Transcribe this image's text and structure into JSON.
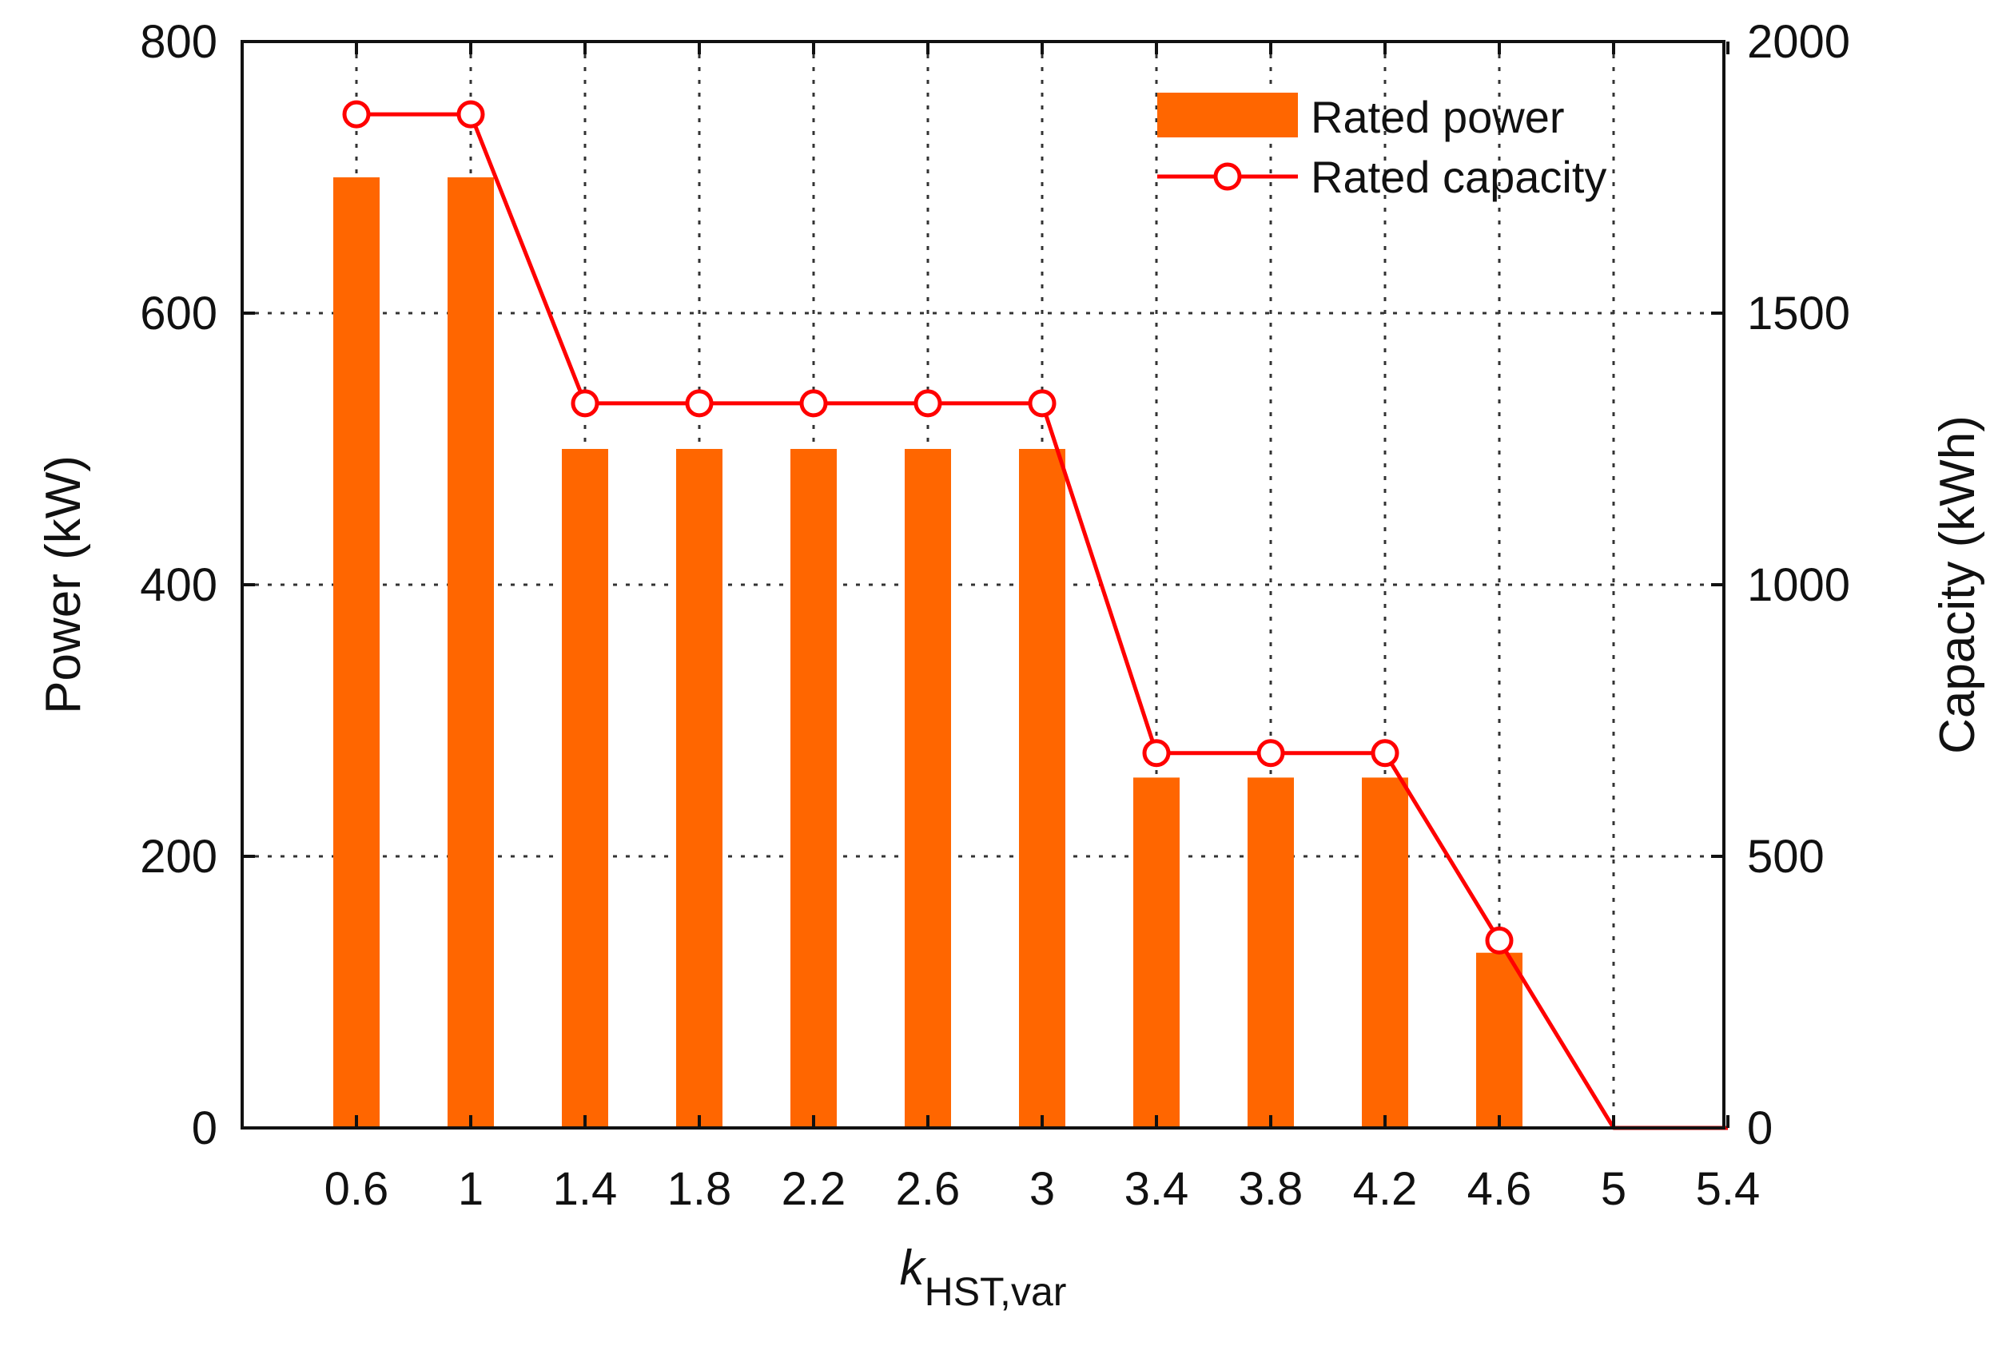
{
  "chart_data": {
    "type": "bar",
    "x_axis": {
      "label_main": "k",
      "label_sub": "HST,var",
      "ticks": [
        "0.6",
        "1",
        "1.4",
        "1.8",
        "2.2",
        "2.6",
        "3",
        "3.4",
        "3.8",
        "4.2",
        "4.6",
        "5",
        "5.4"
      ]
    },
    "y_left": {
      "label": "Power (kW)",
      "ylim": [
        0,
        800
      ],
      "ticks": [
        "0",
        "200",
        "400",
        "600",
        "800"
      ]
    },
    "y_right": {
      "label": "Capacity (kWh)",
      "ylim": [
        0,
        2000
      ],
      "ticks": [
        "0",
        "500",
        "1000",
        "1500",
        "2000"
      ]
    },
    "grid": true,
    "legend": {
      "placement": "top-right",
      "entries": [
        "Rated power",
        "Rated capacity"
      ]
    },
    "series": [
      {
        "name": "Rated power",
        "type": "bar",
        "axis": "left",
        "color": "#ff6600",
        "x": [
          0.6,
          1,
          1.4,
          1.8,
          2.2,
          2.6,
          3,
          3.4,
          3.8,
          4.2,
          4.6,
          5,
          5.4
        ],
        "values": [
          700,
          700,
          500,
          500,
          500,
          500,
          500,
          258,
          258,
          258,
          129,
          0,
          0
        ]
      },
      {
        "name": "Rated capacity",
        "type": "line",
        "axis": "right",
        "color": "#ff0000",
        "x": [
          0.6,
          1,
          1.4,
          1.8,
          2.2,
          2.6,
          3,
          3.4,
          3.8,
          4.2,
          4.6,
          5,
          5.4
        ],
        "values": [
          1866,
          1866,
          1334,
          1334,
          1334,
          1334,
          1334,
          690,
          690,
          690,
          345,
          0,
          0
        ],
        "markers": [
          true,
          true,
          true,
          true,
          true,
          true,
          true,
          true,
          true,
          true,
          true,
          false,
          false
        ]
      }
    ]
  }
}
